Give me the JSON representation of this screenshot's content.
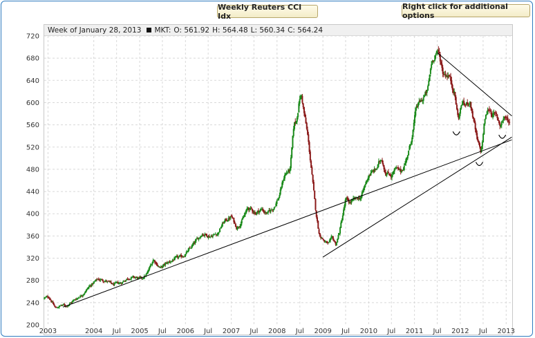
{
  "title_button": "Weekly Reuters CCI Idx",
  "options_button": "Right click for additional options",
  "info": {
    "week": "Week of January 28, 2013",
    "symbol": "MKT:",
    "open": "O: 561.92",
    "high": "H: 564.48",
    "low": "L: 560.34",
    "close": "C: 564.24"
  },
  "colors": {
    "up": "#1a8a1a",
    "down": "#8b1a1a",
    "grid": "#d8d8d8",
    "trendline": "#000000"
  },
  "chart_data": {
    "type": "candlestick",
    "title": "Weekly Reuters CCI Idx",
    "ylim": [
      200,
      720
    ],
    "y_ticks": [
      200,
      240,
      280,
      320,
      360,
      400,
      440,
      480,
      520,
      560,
      600,
      640,
      680,
      720
    ],
    "x_ticks": [
      "2003",
      "2004",
      "Jul",
      "2005",
      "Jul",
      "2006",
      "Jul",
      "2007",
      "Jul",
      "2008",
      "Jul",
      "2009",
      "Jul",
      "2010",
      "Jul",
      "2011",
      "Jul",
      "2012",
      "Jul",
      "2013"
    ],
    "grid": true,
    "series": [
      {
        "key_points": [
          [
            "2002-12-02",
            248
          ],
          [
            "2003-01-10",
            250
          ],
          [
            "2003-02-05",
            240
          ],
          [
            "2003-03-01",
            230
          ],
          [
            "2003-04-15",
            235
          ],
          [
            "2003-06-01",
            235
          ],
          [
            "2003-08-01",
            245
          ],
          [
            "2003-10-01",
            255
          ],
          [
            "2003-12-01",
            270
          ],
          [
            "2004-02-01",
            282
          ],
          [
            "2004-04-01",
            280
          ],
          [
            "2004-06-01",
            272
          ],
          [
            "2004-08-01",
            275
          ],
          [
            "2004-10-01",
            285
          ],
          [
            "2004-12-01",
            285
          ],
          [
            "2005-01-15",
            282
          ],
          [
            "2005-03-01",
            292
          ],
          [
            "2005-04-20",
            318
          ],
          [
            "2005-06-15",
            302
          ],
          [
            "2005-08-01",
            310
          ],
          [
            "2005-10-01",
            318
          ],
          [
            "2005-12-01",
            322
          ],
          [
            "2006-02-01",
            335
          ],
          [
            "2006-05-15",
            365
          ],
          [
            "2006-07-15",
            360
          ],
          [
            "2006-09-15",
            365
          ],
          [
            "2006-11-01",
            385
          ],
          [
            "2007-01-01",
            395
          ],
          [
            "2007-02-15",
            375
          ],
          [
            "2007-04-01",
            390
          ],
          [
            "2007-05-15",
            410
          ],
          [
            "2007-07-15",
            402
          ],
          [
            "2007-09-01",
            408
          ],
          [
            "2007-10-15",
            400
          ],
          [
            "2007-12-01",
            410
          ],
          [
            "2008-01-15",
            430
          ],
          [
            "2008-03-01",
            470
          ],
          [
            "2008-04-15",
            480
          ],
          [
            "2008-05-15",
            560
          ],
          [
            "2008-06-01",
            565
          ],
          [
            "2008-07-01",
            610
          ],
          [
            "2008-07-15",
            612
          ],
          [
            "2008-08-01",
            585
          ],
          [
            "2008-09-01",
            540
          ],
          [
            "2008-10-01",
            480
          ],
          [
            "2008-11-01",
            410
          ],
          [
            "2008-12-01",
            365
          ],
          [
            "2009-01-15",
            350
          ],
          [
            "2009-02-15",
            345
          ],
          [
            "2009-03-15",
            355
          ],
          [
            "2009-04-15",
            345
          ],
          [
            "2009-05-15",
            370
          ],
          [
            "2009-07-01",
            425
          ],
          [
            "2009-08-01",
            420
          ],
          [
            "2009-09-15",
            425
          ],
          [
            "2009-11-01",
            430
          ],
          [
            "2010-01-01",
            470
          ],
          [
            "2010-03-01",
            480
          ],
          [
            "2010-04-15",
            500
          ],
          [
            "2010-05-15",
            475
          ],
          [
            "2010-07-01",
            470
          ],
          [
            "2010-08-01",
            480
          ],
          [
            "2010-09-15",
            475
          ],
          [
            "2010-10-15",
            490
          ],
          [
            "2010-12-01",
            525
          ],
          [
            "2011-01-15",
            590
          ],
          [
            "2011-03-01",
            605
          ],
          [
            "2011-04-15",
            620
          ],
          [
            "2011-05-15",
            670
          ],
          [
            "2011-06-15",
            690
          ],
          [
            "2011-07-15",
            688
          ],
          [
            "2011-08-15",
            655
          ],
          [
            "2011-10-01",
            650
          ],
          [
            "2011-11-15",
            620
          ],
          [
            "2011-12-15",
            570
          ],
          [
            "2012-01-15",
            600
          ],
          [
            "2012-02-15",
            595
          ],
          [
            "2012-03-15",
            605
          ],
          [
            "2012-04-15",
            570
          ],
          [
            "2012-05-15",
            530
          ],
          [
            "2012-06-15",
            510
          ],
          [
            "2012-07-15",
            570
          ],
          [
            "2012-08-15",
            590
          ],
          [
            "2012-09-15",
            580
          ],
          [
            "2012-10-15",
            575
          ],
          [
            "2012-11-15",
            560
          ],
          [
            "2012-12-15",
            575
          ],
          [
            "2013-01-28",
            564
          ]
        ]
      }
    ],
    "trendlines": [
      {
        "from": [
          "2003-05-01",
          232
        ],
        "to": [
          "2013-02-15",
          533
        ]
      },
      {
        "from": [
          "2009-01-01",
          322
        ],
        "to": [
          "2013-02-15",
          538
        ]
      },
      {
        "from": [
          "2011-07-01",
          690
        ],
        "to": [
          "2013-02-15",
          576
        ]
      }
    ],
    "annotations": [
      {
        "type": "arc-mark",
        "at": [
          "2011-12-01",
          543
        ]
      },
      {
        "type": "arc-mark",
        "at": [
          "2012-06-01",
          488
        ]
      },
      {
        "type": "arc-mark",
        "at": [
          "2012-12-01",
          537
        ]
      }
    ]
  }
}
